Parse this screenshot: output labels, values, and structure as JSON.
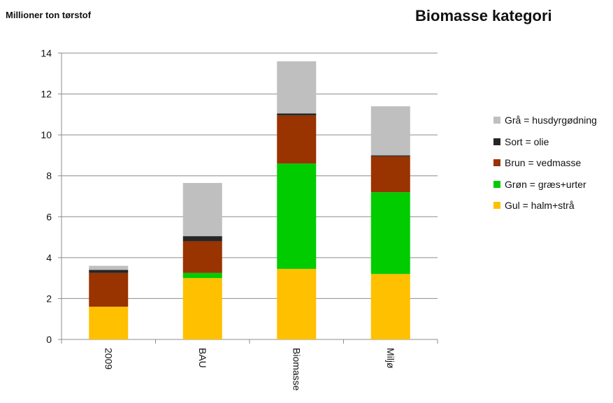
{
  "chart_data": {
    "type": "bar",
    "stacked": true,
    "title": "Biomasse kategori",
    "ylabel": "Millioner ton tørstof",
    "xlabel": "",
    "categories": [
      "2009",
      "BAU",
      "Biomasse",
      "Miljø"
    ],
    "ylim": [
      0,
      14
    ],
    "yticks": [
      0,
      2,
      4,
      6,
      8,
      10,
      12,
      14
    ],
    "grid": true,
    "legend_position": "right",
    "series": [
      {
        "name": "Gul = halm+strå",
        "color": "#FFC000",
        "values": [
          1.6,
          3.0,
          3.45,
          3.2
        ]
      },
      {
        "name": "Grøn = græs+urter",
        "color": "#00CC00",
        "values": [
          0.0,
          0.25,
          5.15,
          4.0
        ]
      },
      {
        "name": "Brun = vedmasse",
        "color": "#993300",
        "values": [
          1.65,
          1.55,
          2.35,
          1.75
        ]
      },
      {
        "name": "Sort = olie",
        "color": "#262626",
        "values": [
          0.15,
          0.25,
          0.1,
          0.05
        ]
      },
      {
        "name": "Grå = husdyrgødning",
        "color": "#BFBFBF",
        "values": [
          0.2,
          2.6,
          2.55,
          2.4
        ]
      }
    ]
  }
}
